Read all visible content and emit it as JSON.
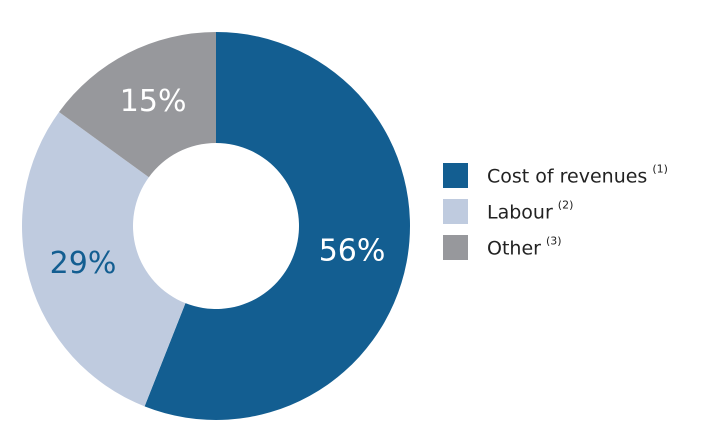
{
  "chart_data": {
    "type": "pie",
    "categories": [
      "Cost of revenues",
      "Labour",
      "Other"
    ],
    "footnotes": [
      "(1)",
      "(2)",
      "(3)"
    ],
    "values": [
      56,
      29,
      15
    ],
    "value_labels": [
      "56%",
      "29%",
      "15%"
    ],
    "colors": [
      "#135e91",
      "#bfcbdf",
      "#97989c"
    ],
    "legend": "right"
  }
}
